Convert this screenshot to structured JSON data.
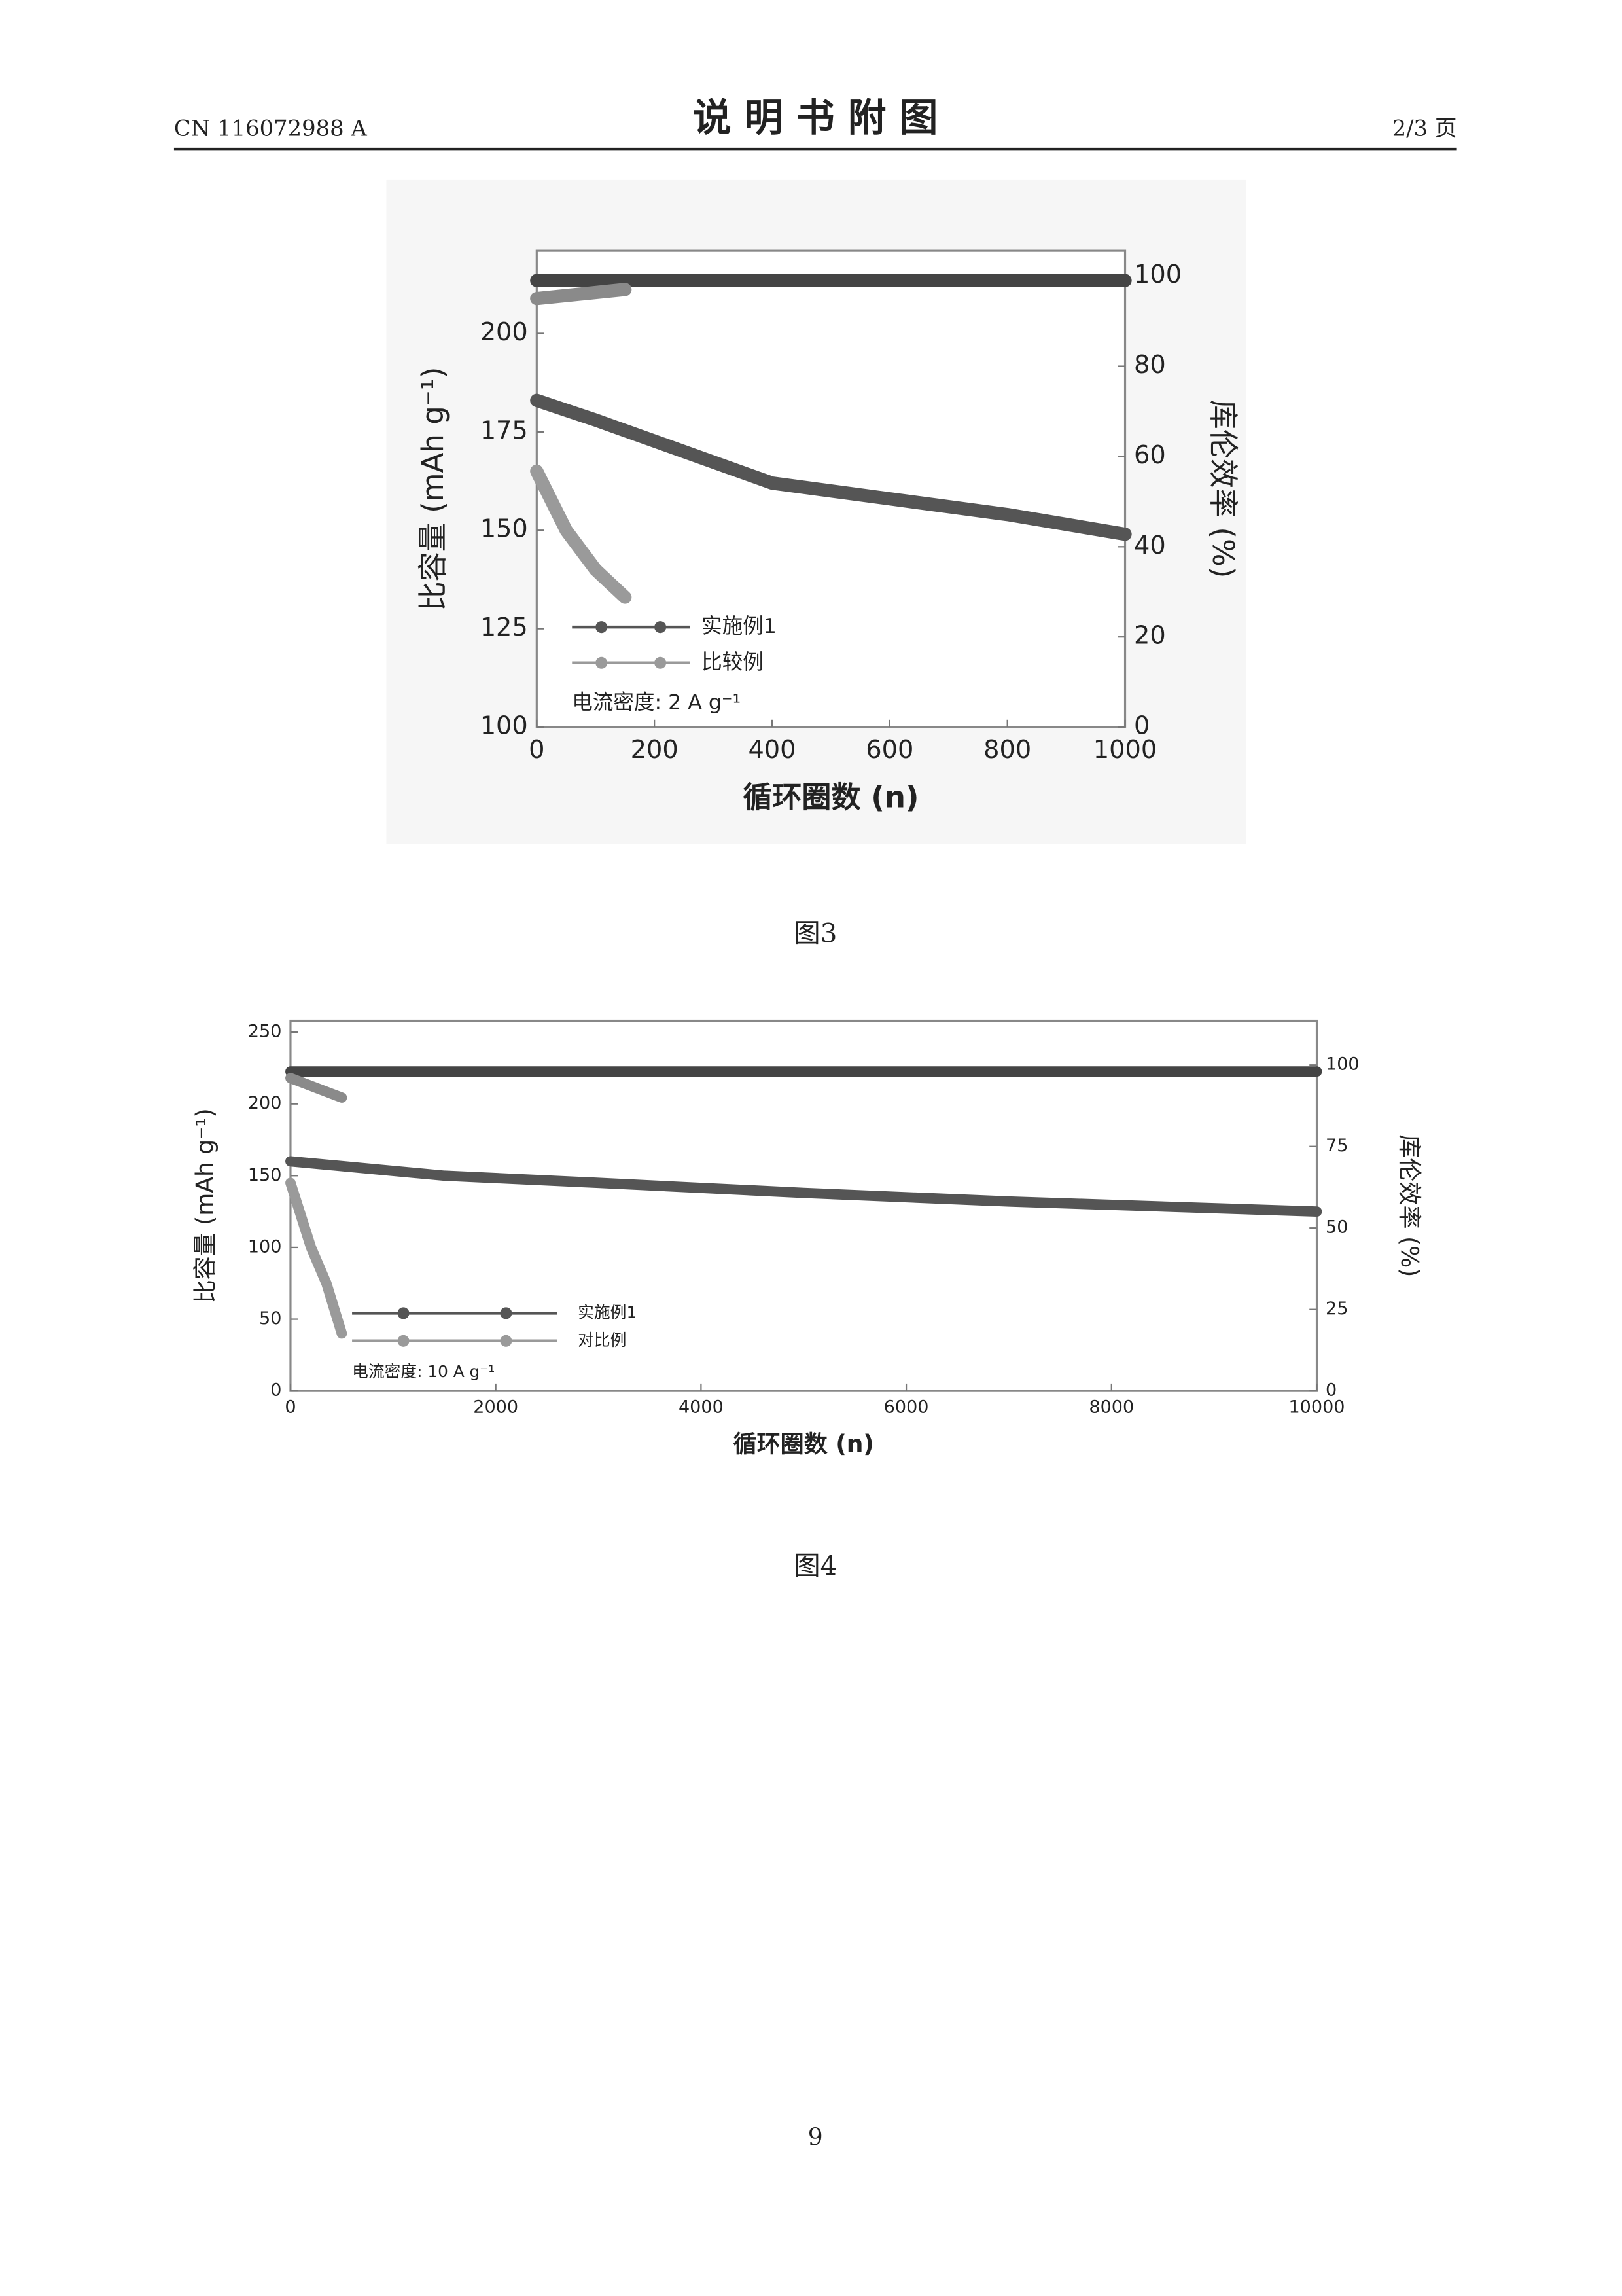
{
  "header": {
    "left": "CN 116072988 A",
    "title": "说 明 书 附 图",
    "right": "2/3 页"
  },
  "chart_data": [
    {
      "type": "line",
      "x_label": "循环圈数 (n)",
      "y_label": "比容量 (mAh g⁻¹)",
      "y2_label": "库伦效率 (%)",
      "annotation": "电流密度: 2 A g⁻¹",
      "legend": "lower left",
      "xlim": [
        0,
        1000
      ],
      "xticks": [
        0,
        200,
        400,
        600,
        800,
        1000
      ],
      "ylim": [
        100,
        221
      ],
      "yticks": [
        100,
        125,
        150,
        175,
        200
      ],
      "y2lim": [
        0,
        105.6
      ],
      "y2ticks": [
        0,
        20,
        40,
        60,
        80,
        100
      ],
      "series": [
        {
          "name": "实施例1",
          "color": "#555555",
          "x": [
            0,
            100,
            250,
            400,
            600,
            800,
            1000
          ],
          "values": [
            183,
            178,
            170,
            162,
            158,
            154,
            149
          ]
        },
        {
          "name": "比较例",
          "color": "#9a9a9a",
          "x": [
            0,
            50,
            100,
            150
          ],
          "values": [
            165,
            150,
            140,
            133
          ]
        },
        {
          "color": "#444444",
          "axis": "y2",
          "x": [
            0,
            1000
          ],
          "values": [
            99,
            99
          ]
        },
        {
          "color": "#8a8a8a",
          "axis": "y2",
          "x": [
            0,
            150
          ],
          "values": [
            95,
            97
          ]
        }
      ]
    },
    {
      "type": "line",
      "x_label": "循环圈数 (n)",
      "y_label": "比容量 (mAh g⁻¹)",
      "y2_label": "库伦效率 (%)",
      "annotation": "电流密度: 10 A g⁻¹",
      "legend": "lower left",
      "xlim": [
        0,
        10000
      ],
      "xticks": [
        0,
        2000,
        4000,
        6000,
        8000,
        10000
      ],
      "ylim": [
        0,
        258
      ],
      "yticks": [
        0,
        50,
        100,
        150,
        200,
        250
      ],
      "y2lim": [
        0,
        113.6
      ],
      "y2ticks": [
        0,
        25,
        50,
        75,
        100
      ],
      "series": [
        {
          "name": "实施例1",
          "color": "#555555",
          "x": [
            0,
            1500,
            3000,
            5000,
            7000,
            10000
          ],
          "values": [
            160,
            150,
            145,
            138,
            132,
            125
          ]
        },
        {
          "name": "对比例",
          "color": "#9a9a9a",
          "x": [
            0,
            200,
            350,
            500
          ],
          "values": [
            145,
            100,
            75,
            40
          ]
        },
        {
          "color": "#444444",
          "axis": "y2",
          "x": [
            0,
            10000
          ],
          "values": [
            98,
            98
          ]
        },
        {
          "color": "#8a8a8a",
          "axis": "y2",
          "x": [
            0,
            500
          ],
          "values": [
            96,
            90
          ]
        }
      ]
    }
  ],
  "captions": [
    "图3",
    "图4"
  ],
  "page_number": "9"
}
